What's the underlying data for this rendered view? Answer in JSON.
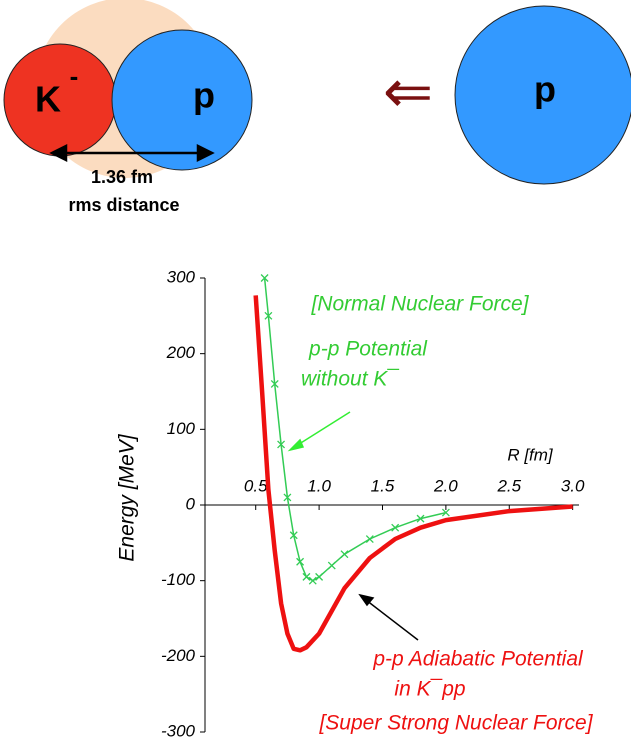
{
  "diagram": {
    "k_label": "K",
    "k_charge": "-",
    "p_label": "p",
    "p2_label": "p",
    "arrow": "⇐",
    "distance": "1.36 fm",
    "distance_note": "rms distance"
  },
  "chart_data": {
    "type": "line",
    "y_label": "Energy  [MeV]",
    "x_label": "R  [fm]",
    "xlim": [
      0.1,
      3.05
    ],
    "ylim": [
      -300,
      300
    ],
    "xticks": [
      0.5,
      {
        "value": 1,
        "label": "1.0"
      },
      1.5,
      {
        "value": 2,
        "label": "2.0"
      },
      2.5,
      {
        "value": 3,
        "label": "3.0"
      }
    ],
    "yticks": [
      -300,
      -200,
      -100,
      0,
      100,
      200,
      300
    ],
    "series": [
      {
        "name": "p-p Adiabatic Potential",
        "color": "#ee1111",
        "x": [
          0.5,
          0.55,
          0.6,
          0.65,
          0.7,
          0.75,
          0.8,
          0.85,
          0.9,
          1.0,
          1.1,
          1.2,
          1.4,
          1.6,
          1.8,
          2.0,
          2.5,
          3.0
        ],
        "values": [
          277,
          150,
          20,
          -60,
          -130,
          -170,
          -190,
          -192,
          -188,
          -170,
          -140,
          -110,
          -70,
          -45,
          -30,
          -20,
          -8,
          -2
        ]
      },
      {
        "name": "p-p Potential",
        "color": "#33cc55",
        "markers": true,
        "x": [
          0.57,
          0.6,
          0.65,
          0.7,
          0.75,
          0.8,
          0.85,
          0.9,
          0.95,
          1.0,
          1.1,
          1.2,
          1.4,
          1.6,
          1.8,
          2.0
        ],
        "values": [
          300,
          250,
          160,
          80,
          10,
          -40,
          -75,
          -95,
          -100,
          -95,
          -80,
          -65,
          -45,
          -30,
          -18,
          -10
        ]
      }
    ],
    "annotations": [
      "[Normal Nuclear Force]",
      "p-p Potential",
      "without K¯",
      "p-p Adiabatic Potential",
      "in K¯pp",
      "[Super Strong Nuclear Force]"
    ]
  }
}
